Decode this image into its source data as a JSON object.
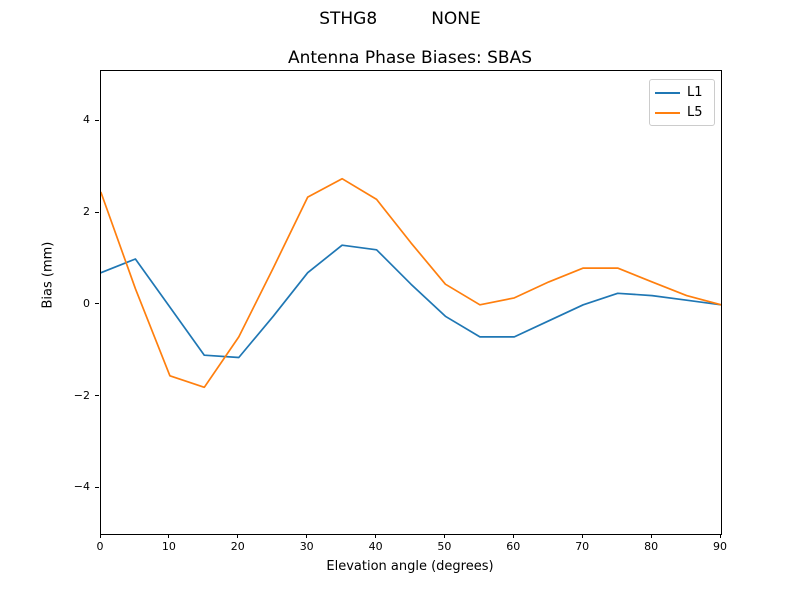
{
  "figure": {
    "background": "#ffffff",
    "spine_color": "#000000"
  },
  "chart_data": {
    "type": "line",
    "suptitle": "STHG8          NONE",
    "title": "Antenna Phase Biases: SBAS",
    "xlabel": "Elevation angle (degrees)",
    "ylabel": "Bias (mm)",
    "x": [
      0,
      5,
      10,
      15,
      20,
      25,
      30,
      35,
      40,
      45,
      50,
      55,
      60,
      65,
      70,
      75,
      80,
      85,
      90
    ],
    "series": [
      {
        "name": "L1",
        "color": "#1f77b4",
        "values": [
          0.7,
          1.0,
          -0.05,
          -1.1,
          -1.15,
          -0.25,
          0.7,
          1.3,
          1.2,
          0.45,
          -0.25,
          -0.7,
          -0.7,
          -0.35,
          0.0,
          0.25,
          0.2,
          0.1,
          0.0
        ]
      },
      {
        "name": "L5",
        "color": "#ff7f0e",
        "values": [
          2.45,
          0.35,
          -1.55,
          -1.8,
          -0.7,
          0.8,
          2.35,
          2.75,
          2.3,
          1.35,
          0.45,
          0.0,
          0.15,
          0.5,
          0.8,
          0.8,
          0.5,
          0.2,
          0.0
        ]
      }
    ],
    "xlim": [
      0,
      90
    ],
    "ylim": [
      -5,
      5.1
    ],
    "x_ticks": [
      0,
      10,
      20,
      30,
      40,
      50,
      60,
      70,
      80,
      90
    ],
    "y_ticks": [
      -4,
      -2,
      0,
      2,
      4
    ],
    "grid": false,
    "legend_position": "upper right"
  }
}
